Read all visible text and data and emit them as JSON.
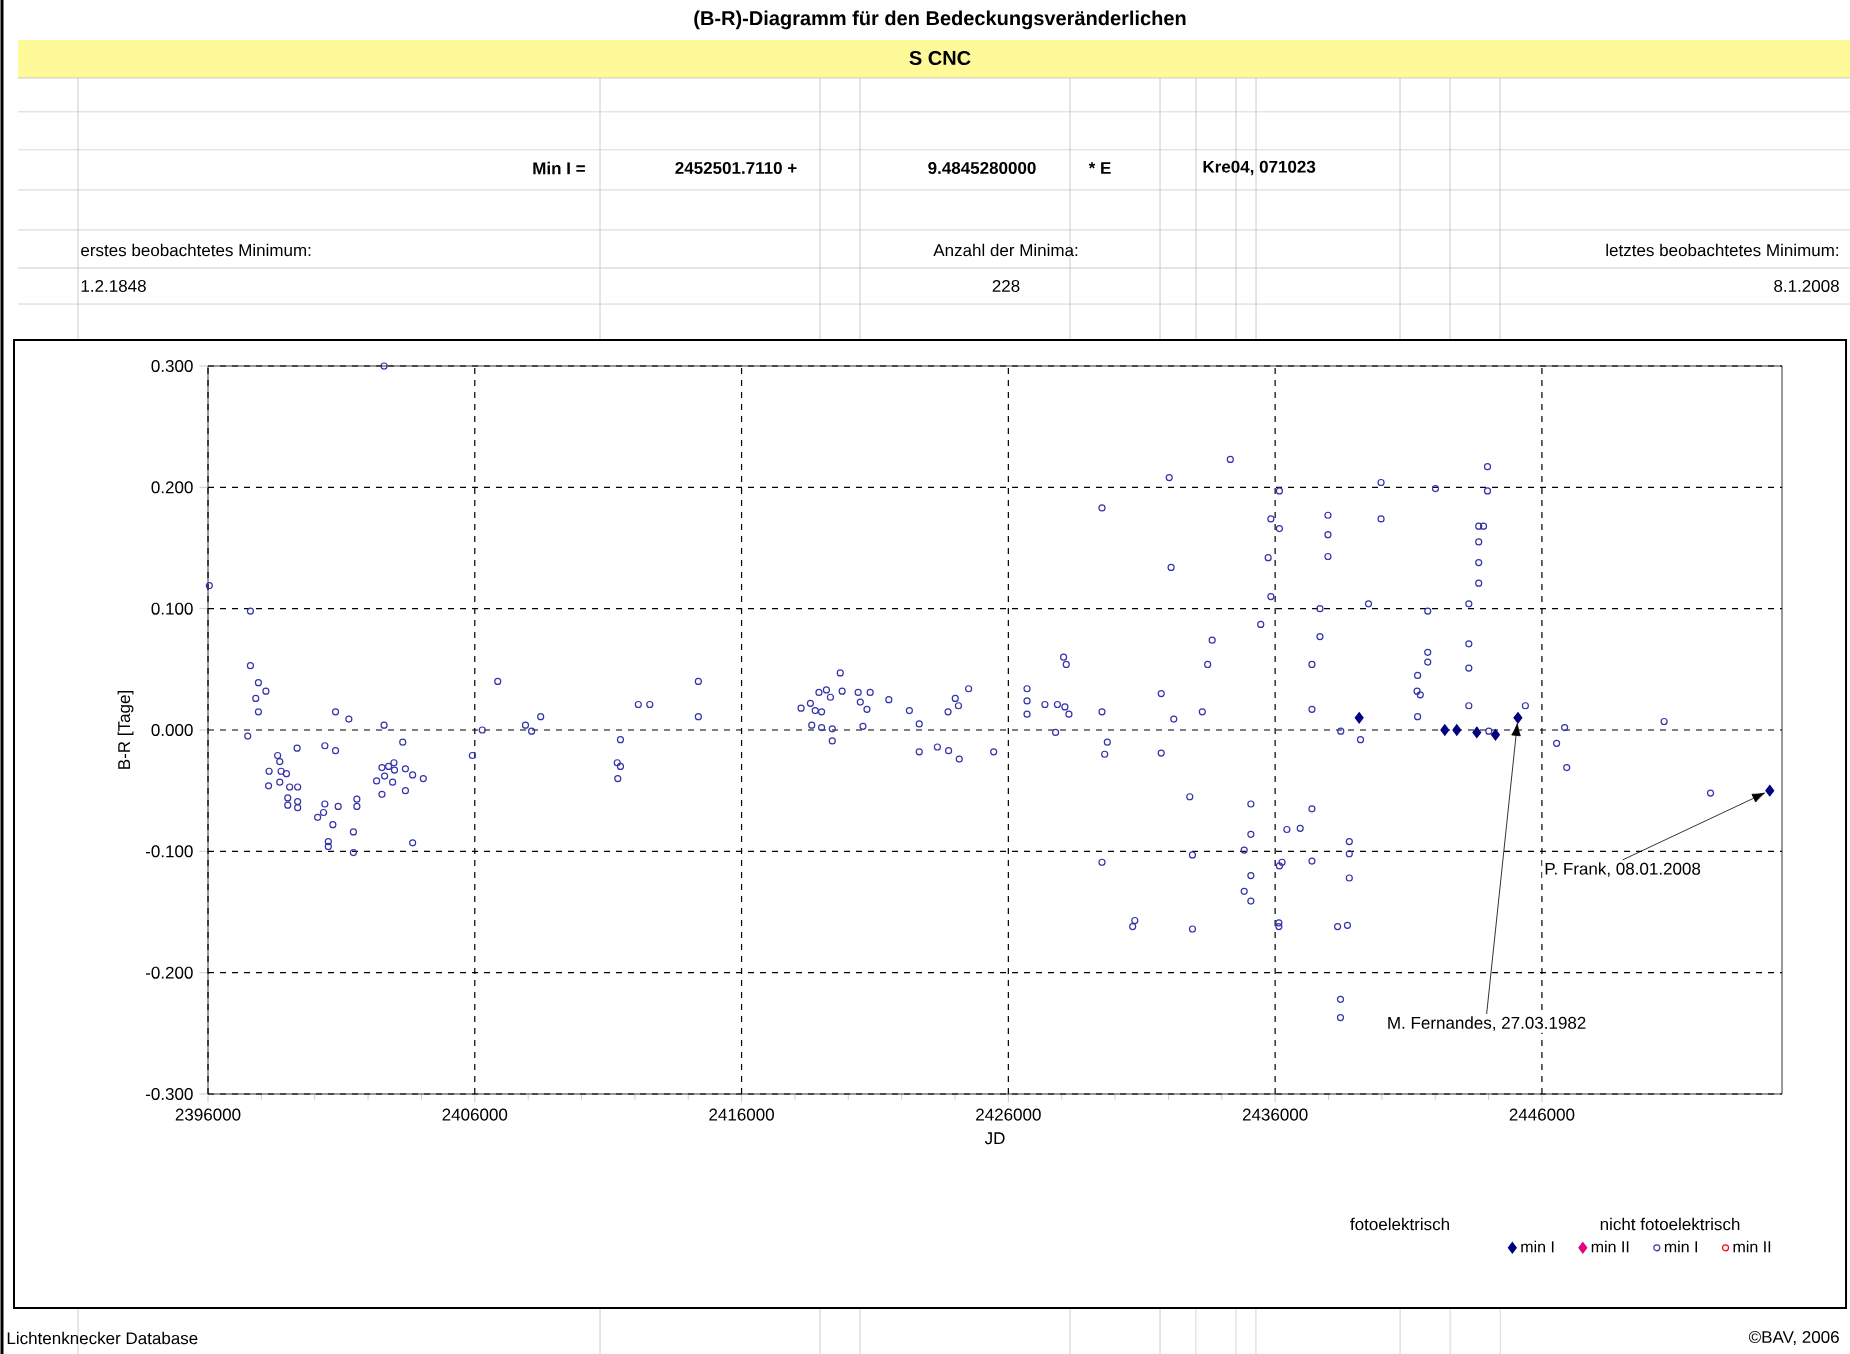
{
  "chart_data": {
    "type": "scatter",
    "title": "(B-R)-Diagramm für den Bedeckungsveränderlichen",
    "subtitle": "S CNC",
    "xlabel": "JD",
    "ylabel": "B-R [Tage]",
    "xlim": [
      2396000,
      2455000
    ],
    "ylim": [
      -0.3,
      0.3
    ],
    "xticks": [
      2396000,
      2406000,
      2416000,
      2426000,
      2436000,
      2446000
    ],
    "yticks": [
      {
        "value": -0.3,
        "label": "-0.300"
      },
      {
        "value": -0.2,
        "label": "-0.200"
      },
      {
        "value": -0.1,
        "label": "-0.100"
      },
      {
        "value": 0,
        "label": "0.000"
      },
      {
        "value": 0.1,
        "label": "0.100"
      },
      {
        "value": 0.2,
        "label": "0.200"
      },
      {
        "value": 0.3,
        "label": "0.300"
      }
    ],
    "grid": true,
    "legend": "bottom right",
    "annotations": [
      "Min I =",
      "2452501.7110 +",
      "9.4845280000",
      "* E",
      "Kre04, 071023",
      "erstes beobachtetes Minimum:",
      "1.2.1848",
      "Anzahl der Minima:",
      "228",
      "letztes beobachtetes Minimum:",
      "8.1.2008",
      "fotoelektrisch",
      "nicht fotoelektrisch",
      "Lichtenknecker Database",
      "©BAV, 2006",
      {
        "text": "M. Fernandes, 27.03.1982",
        "x": 2445100,
        "y": 0.01
      },
      {
        "text": "P. Frank, 08.01.2008",
        "x": 2454540,
        "y": -0.05
      }
    ],
    "series": [
      {
        "name": "min I",
        "color": "#000080",
        "marker": "diamond",
        "x": [
          2439150,
          2442360,
          2442810,
          2443560,
          2444260,
          2445100,
          2454540
        ],
        "values": [
          0.01,
          0.0,
          0.0,
          -0.002,
          -0.004,
          0.01,
          -0.05
        ]
      },
      {
        "name": "min II",
        "color": "#e6007e",
        "marker": "diamond"
      },
      {
        "name": "min I",
        "color": "#3333aa",
        "marker": "circle",
        "x": [
          2402600,
          2396050,
          2397590,
          2397590,
          2397890,
          2398170,
          2397790,
          2397890,
          2397490,
          2398610,
          2398690,
          2398290,
          2398740,
          2398940,
          2398270,
          2398690,
          2399060,
          2399360,
          2398990,
          2399360,
          2398990,
          2399360,
          2399340,
          2400380,
          2400780,
          2400780,
          2401280,
          2400380,
          2400880,
          2400330,
          2400110,
          2400680,
          2400510,
          2400510,
          2401450,
          2401450,
          2401580,
          2401580,
          2402600,
          2403300,
          2402520,
          2402620,
          2402320,
          2402770,
          2402970,
          2402990,
          2402920,
          2403400,
          2403670,
          2404070,
          2403400,
          2402520,
          2403670,
          2405910,
          2406280,
          2406860,
          2407900,
          2408130,
          2408470,
          2411460,
          2411340,
          2411460,
          2411360,
          2412130,
          2412560,
          2414380,
          2414380,
          2418230,
          2418580,
          2418630,
          2418760,
          2418900,
          2419000,
          2419000,
          2419180,
          2419330,
          2419400,
          2419400,
          2419700,
          2419770,
          2420370,
          2420450,
          2420700,
          2420820,
          2420550,
          2421520,
          2422290,
          2422660,
          2422660,
          2423340,
          2423760,
          2423740,
          2424010,
          2424130,
          2424160,
          2424510,
          2425450,
          2426700,
          2426700,
          2426700,
          2427370,
          2427840,
          2428120,
          2428270,
          2428070,
          2428170,
          2427770,
          2429510,
          2429710,
          2429610,
          2429510,
          2429510,
          2430660,
          2430740,
          2431730,
          2431730,
          2432030,
          2432100,
          2432200,
          2432800,
          2432900,
          2432900,
          2433270,
          2433470,
          2433640,
          2434320,
          2435090,
          2435090,
          2434840,
          2435090,
          2434840,
          2435090,
          2435460,
          2435840,
          2435740,
          2435840,
          2436160,
          2436160,
          2436160,
          2436260,
          2436140,
          2436140,
          2436440,
          2436940,
          2437380,
          2437380,
          2437380,
          2437380,
          2437680,
          2437680,
          2437980,
          2437980,
          2437980,
          2438460,
          2439200,
          2438780,
          2438780,
          2438780,
          2438340,
          2438710,
          2438450,
          2438450,
          2439500,
          2439970,
          2439970,
          2441340,
          2441340,
          2441320,
          2441440,
          2441720,
          2441720,
          2441720,
          2442010,
          2443260,
          2443260,
          2443260,
          2443260,
          2443630,
          2443630,
          2443630,
          2443630,
          2443810,
          2443960,
          2443960,
          2444010,
          2445380,
          2446550,
          2446850,
          2446930,
          2450580,
          2452320
        ],
        "values": [
          0.3,
          0.119,
          0.098,
          0.053,
          0.039,
          0.032,
          0.026,
          0.015,
          -0.005,
          -0.021,
          -0.026,
          -0.034,
          -0.034,
          -0.036,
          -0.046,
          -0.043,
          -0.047,
          -0.047,
          -0.056,
          -0.059,
          -0.062,
          -0.064,
          -0.015,
          -0.013,
          -0.017,
          0.015,
          0.009,
          -0.061,
          -0.063,
          -0.068,
          -0.072,
          -0.078,
          -0.092,
          -0.096,
          -0.084,
          -0.101,
          -0.057,
          -0.063,
          0.004,
          -0.01,
          -0.031,
          -0.038,
          -0.042,
          -0.03,
          -0.027,
          -0.033,
          -0.043,
          -0.032,
          -0.037,
          -0.04,
          -0.05,
          -0.053,
          -0.093,
          -0.021,
          0.0,
          0.04,
          0.004,
          -0.001,
          0.011,
          -0.008,
          -0.027,
          -0.03,
          -0.04,
          0.021,
          0.021,
          0.04,
          0.011,
          0.018,
          0.022,
          0.004,
          0.016,
          0.031,
          0.015,
          0.002,
          0.033,
          0.027,
          0.001,
          -0.009,
          0.047,
          0.032,
          0.031,
          0.023,
          0.017,
          0.031,
          0.003,
          0.025,
          0.016,
          0.005,
          -0.018,
          -0.014,
          -0.017,
          0.015,
          0.026,
          0.02,
          -0.024,
          0.034,
          -0.018,
          0.034,
          0.024,
          0.013,
          0.021,
          0.021,
          0.019,
          0.013,
          0.06,
          0.054,
          -0.002,
          0.015,
          -0.01,
          -0.02,
          -0.109,
          0.183,
          -0.162,
          -0.157,
          0.03,
          -0.019,
          0.208,
          0.134,
          0.009,
          -0.055,
          -0.103,
          -0.164,
          0.015,
          0.054,
          0.074,
          0.223,
          -0.061,
          -0.086,
          -0.099,
          -0.12,
          -0.133,
          -0.141,
          0.087,
          0.11,
          0.142,
          0.174,
          0.166,
          0.197,
          -0.112,
          -0.109,
          -0.159,
          -0.162,
          -0.082,
          -0.081,
          -0.065,
          -0.108,
          0.017,
          0.054,
          0.077,
          0.1,
          0.177,
          0.161,
          0.143,
          -0.001,
          -0.008,
          -0.092,
          -0.102,
          -0.122,
          -0.162,
          -0.161,
          -0.222,
          -0.237,
          0.104,
          0.204,
          0.174,
          0.011,
          0.045,
          0.032,
          0.029,
          0.056,
          0.064,
          0.098,
          0.199,
          0.02,
          0.051,
          0.071,
          0.104,
          0.121,
          0.138,
          0.155,
          0.168,
          0.168,
          0.197,
          0.217,
          -0.001,
          0.02,
          -0.011,
          0.002,
          -0.031,
          0.007,
          -0.052
        ]
      },
      {
        "name": "min II",
        "color": "#ff0000",
        "marker": "circle"
      }
    ]
  }
}
